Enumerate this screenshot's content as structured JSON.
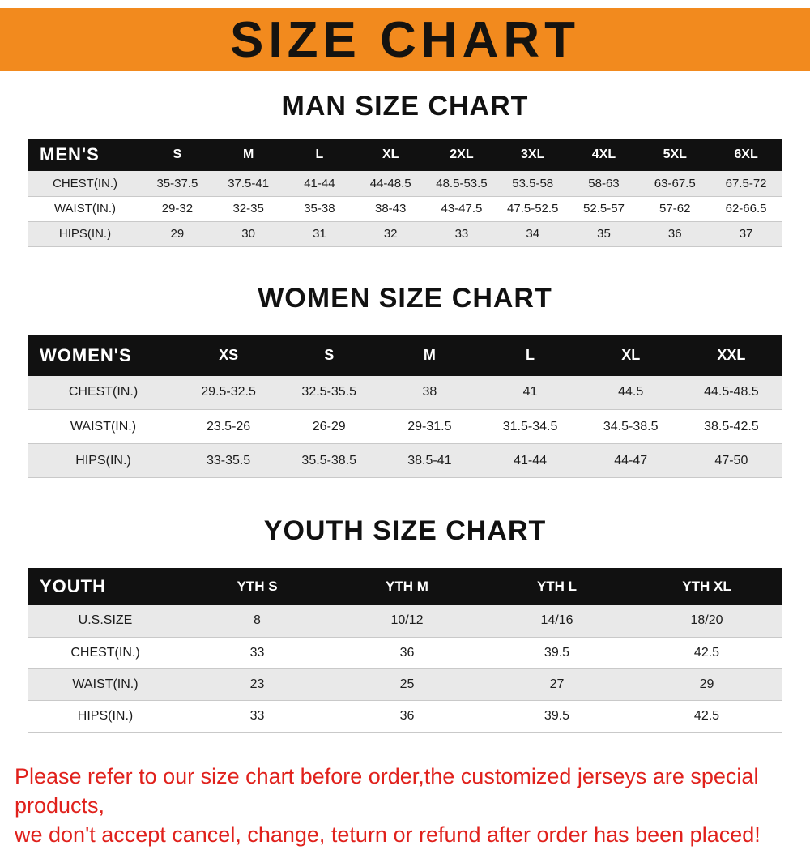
{
  "banner": {
    "title": "SIZE CHART"
  },
  "chart_data": [
    {
      "type": "table",
      "id": "men",
      "title": "MAN SIZE CHART",
      "columns": [
        "MEN'S",
        "S",
        "M",
        "L",
        "XL",
        "2XL",
        "3XL",
        "4XL",
        "5XL",
        "6XL"
      ],
      "rows": [
        [
          "CHEST(IN.)",
          "35-37.5",
          "37.5-41",
          "41-44",
          "44-48.5",
          "48.5-53.5",
          "53.5-58",
          "58-63",
          "63-67.5",
          "67.5-72"
        ],
        [
          "WAIST(IN.)",
          "29-32",
          "32-35",
          "35-38",
          "38-43",
          "43-47.5",
          "47.5-52.5",
          "52.5-57",
          "57-62",
          "62-66.5"
        ],
        [
          "HIPS(IN.)",
          "29",
          "30",
          "31",
          "32",
          "33",
          "34",
          "35",
          "36",
          "37"
        ]
      ]
    },
    {
      "type": "table",
      "id": "women",
      "title": "WOMEN SIZE CHART",
      "columns": [
        "WOMEN'S",
        "XS",
        "S",
        "M",
        "L",
        "XL",
        "XXL"
      ],
      "rows": [
        [
          "CHEST(IN.)",
          "29.5-32.5",
          "32.5-35.5",
          "38",
          "41",
          "44.5",
          "44.5-48.5"
        ],
        [
          "WAIST(IN.)",
          "23.5-26",
          "26-29",
          "29-31.5",
          "31.5-34.5",
          "34.5-38.5",
          "38.5-42.5"
        ],
        [
          "HIPS(IN.)",
          "33-35.5",
          "35.5-38.5",
          "38.5-41",
          "41-44",
          "44-47",
          "47-50"
        ]
      ]
    },
    {
      "type": "table",
      "id": "youth",
      "title": "YOUTH SIZE CHART",
      "columns": [
        "YOUTH",
        "YTH S",
        "YTH M",
        "YTH L",
        "YTH XL"
      ],
      "rows": [
        [
          "U.S.SIZE",
          "8",
          "10/12",
          "14/16",
          "18/20"
        ],
        [
          "CHEST(IN.)",
          "33",
          "36",
          "39.5",
          "42.5"
        ],
        [
          "WAIST(IN.)",
          "23",
          "25",
          "27",
          "29"
        ],
        [
          "HIPS(IN.)",
          "33",
          "36",
          "39.5",
          "42.5"
        ]
      ]
    }
  ],
  "footer": {
    "line1": "Please refer to our size chart before order,the customized jerseys are special products,",
    "line2": "we don't accept cancel, change, teturn or refund after order has been placed!"
  },
  "colors": {
    "banner_bg": "#f28a1e",
    "table_header_bg": "#111111",
    "alt_row_bg": "#e9e9e9",
    "notice_text": "#e0211c"
  }
}
